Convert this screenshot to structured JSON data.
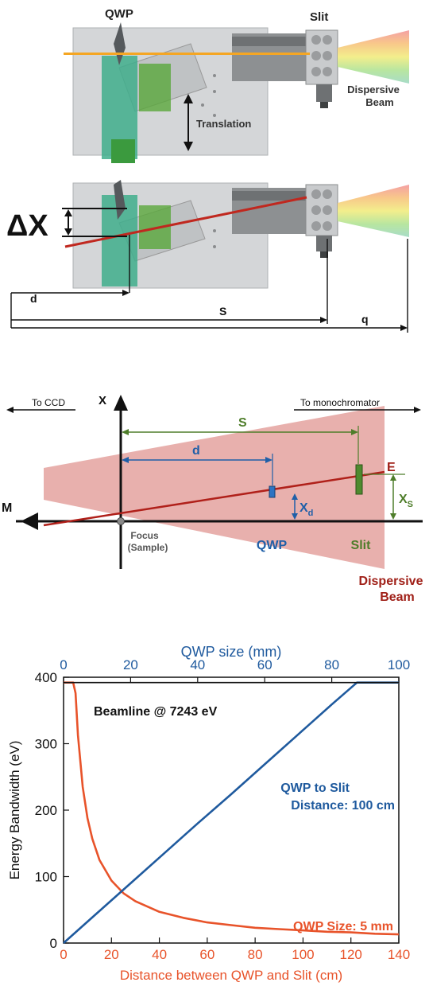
{
  "panel_a": {
    "qwp_label": "QWP",
    "slit_label": "Slit",
    "beam_label_1": "Dispersive",
    "beam_label_2": "Beam",
    "translation_label": "Translation",
    "delta_x_label": "ΔX",
    "d_label": "d",
    "s_label": "S",
    "q_label": "q"
  },
  "panel_b": {
    "to_ccd": "To CCD",
    "to_mono": "To monochromator",
    "x_axis": "X",
    "m_label": "M",
    "s_label": "S",
    "d_label": "d",
    "e_label": "E",
    "xd_main": "X",
    "xd_sub": "d",
    "xs_main": "X",
    "xs_sub": "S",
    "focus_1": "Focus",
    "focus_2": "(Sample)",
    "qwp_label": "QWP",
    "slit_label": "Slit",
    "beam_1": "Dispersive",
    "beam_2": "Beam",
    "colors": {
      "beam_fill": "#e8b0ad",
      "ray": "#b0201a",
      "green": "#4e7d2a",
      "blue": "#1f5fa8"
    }
  },
  "chart_data": {
    "type": "line",
    "xlabel": "Distance between QWP and Slit (cm)",
    "ylabel": "Energy Bandwidth (eV)",
    "top_xlabel": "QWP size (mm)",
    "xlim": [
      0,
      140
    ],
    "ylim": [
      0,
      400
    ],
    "top_xlim": [
      0,
      100
    ],
    "x_ticks": [
      "0",
      "20",
      "40",
      "60",
      "80",
      "100",
      "120",
      "140"
    ],
    "y_ticks": [
      "0",
      "100",
      "200",
      "300",
      "400"
    ],
    "top_ticks": [
      "0",
      "20",
      "40",
      "60",
      "80",
      "100"
    ],
    "annotations": {
      "beamline": "Beamline @ 7243 eV",
      "qwp_slit_1": "QWP to Slit",
      "qwp_slit_2": "Distance: 100 cm",
      "qwp_size": "QWP Size: 5 mm"
    },
    "series": [
      {
        "axis": "bottom",
        "color": "#e8532a",
        "x": [
          0,
          4,
          5,
          6,
          8,
          10,
          12,
          15,
          20,
          25,
          30,
          40,
          50,
          60,
          70,
          80,
          90,
          100,
          110,
          120,
          130,
          140
        ],
        "y": [
          392,
          392,
          376,
          313,
          235,
          188,
          157,
          125,
          94,
          75,
          63,
          47,
          38,
          31,
          27,
          23,
          21,
          19,
          17,
          16,
          14,
          13
        ]
      },
      {
        "axis": "top",
        "color": "#1f5a9e",
        "x": [
          0,
          10,
          20,
          30,
          40,
          50,
          60,
          70,
          80,
          87.5,
          100
        ],
        "y": [
          0,
          45,
          90,
          135,
          180,
          224,
          269,
          314,
          359,
          392,
          392
        ]
      },
      {
        "axis": "bottom",
        "color": "#111111",
        "x": [
          0,
          140
        ],
        "y": [
          392,
          392
        ]
      }
    ]
  }
}
